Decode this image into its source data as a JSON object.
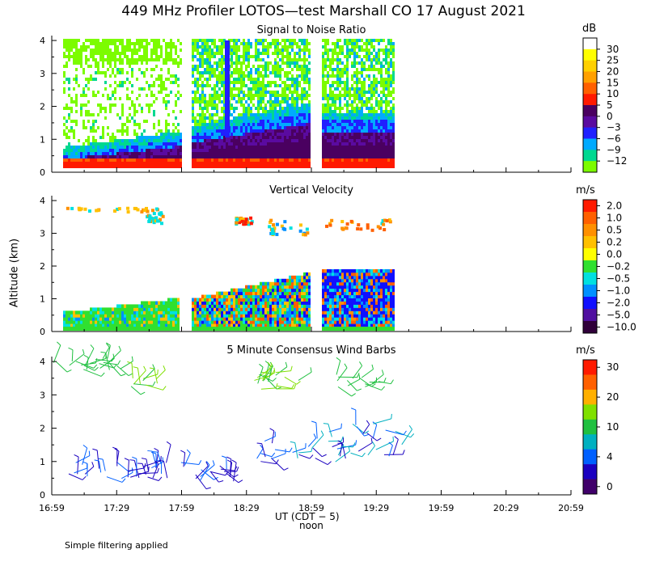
{
  "title": "449 MHz Profiler LOTOS—test Marshall CO 17 August 2021",
  "footer_note": "Simple filtering applied",
  "chart_data": [
    {
      "type": "heatmap",
      "title": "Signal to Noise Ratio",
      "ylabel": "",
      "ylim": [
        0,
        4
      ],
      "yticks": [
        "0",
        "1",
        "2",
        "3",
        "4"
      ],
      "colorbar_unit": "dB",
      "colorbar_labels": [
        "30",
        "25",
        "20",
        "15",
        "10",
        "5",
        "0",
        "−3",
        "−6",
        "−9",
        "−12"
      ],
      "colorbar_colors": [
        "#ffffff",
        "#ffff00",
        "#ffd000",
        "#ffa000",
        "#ff6000",
        "#ff1a00",
        "#4a0060",
        "#5a0aa0",
        "#2020ff",
        "#00aaff",
        "#00d890",
        "#7cfc00"
      ]
    },
    {
      "type": "heatmap",
      "title": "Vertical Velocity",
      "ylabel": "Altitude (km)",
      "ylim": [
        0,
        4
      ],
      "yticks": [
        "0",
        "1",
        "2",
        "3",
        "4"
      ],
      "colorbar_unit": "m/s",
      "colorbar_labels": [
        "2.0",
        "1.0",
        "0.5",
        "0.2",
        "0.0",
        "−0.2",
        "−0.5",
        "−1.0",
        "−2.0",
        "−5.0",
        "−10.0"
      ],
      "colorbar_colors": [
        "#ff1a00",
        "#ff6000",
        "#ff9000",
        "#ffc000",
        "#ffff00",
        "#30e030",
        "#00e0e0",
        "#0090ff",
        "#1010ff",
        "#5010a0",
        "#30003a"
      ]
    },
    {
      "type": "scatter",
      "title": "5 Minute Consensus Wind Barbs",
      "ylabel": "",
      "ylim": [
        0,
        4
      ],
      "yticks": [
        "0",
        "1",
        "2",
        "3",
        "4"
      ],
      "colorbar_unit": "m/s",
      "colorbar_labels": [
        "30",
        "20",
        "10",
        "4",
        "0"
      ],
      "colorbar_colors": [
        "#ff1a00",
        "#ff6000",
        "#ffb000",
        "#80e000",
        "#20c040",
        "#00b0c0",
        "#0060ff",
        "#1a00c0",
        "#40006a"
      ]
    }
  ],
  "x_axis": {
    "ticks": [
      "16:59",
      "17:29",
      "17:59",
      "18:29",
      "18:59",
      "19:29",
      "19:59",
      "20:29",
      "20:59"
    ],
    "label": "UT (CDT − 5)",
    "sublabel": "noon"
  }
}
